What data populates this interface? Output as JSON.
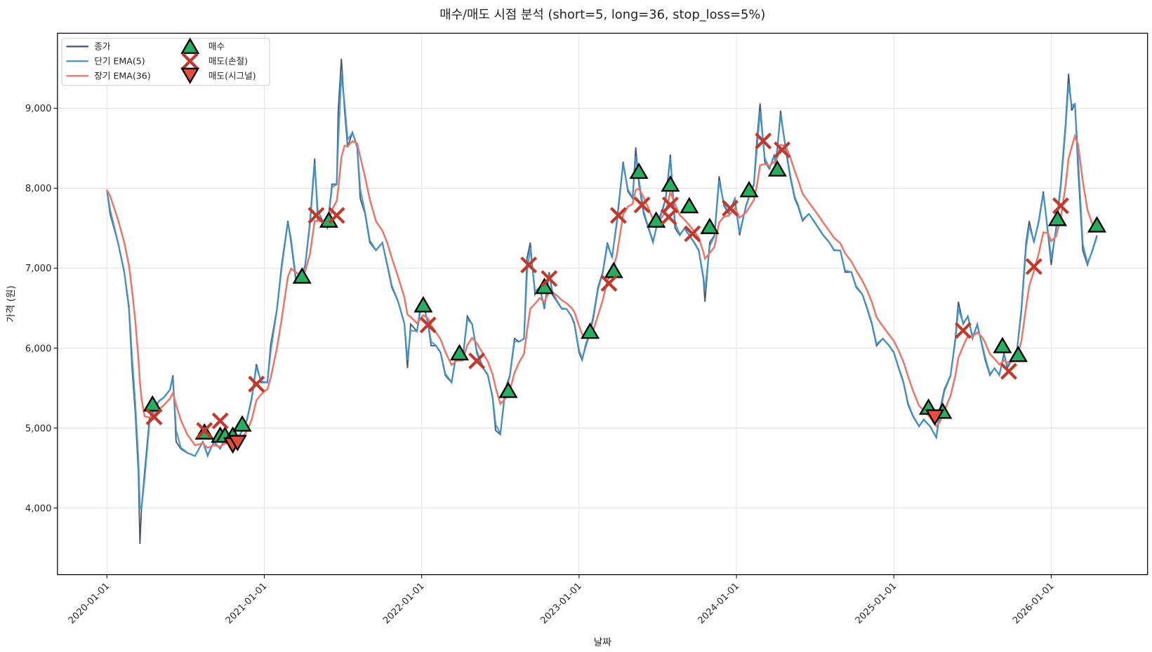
{
  "chart_data": {
    "type": "line",
    "title": "매수/매도 시점 분석 (short=5, long=36, stop_loss=5%)",
    "xlabel": "날짜",
    "ylabel": "가격 (원)",
    "xlim": [
      2019.686,
      2026.612
    ],
    "ylim": [
      3167,
      9938
    ],
    "grid": true,
    "legend_placement": "top-left",
    "x_ticks": [
      {
        "t": 2020,
        "label": "2020-01-01"
      },
      {
        "t": 2021,
        "label": "2021-01-01"
      },
      {
        "t": 2022,
        "label": "2022-01-01"
      },
      {
        "t": 2023,
        "label": "2023-01-01"
      },
      {
        "t": 2024,
        "label": "2024-01-01"
      },
      {
        "t": 2025,
        "label": "2025-01-01"
      },
      {
        "t": 2026,
        "label": "2026-01-01"
      }
    ],
    "y_ticks": [
      {
        "v": 4000,
        "label": "4,000"
      },
      {
        "v": 5000,
        "label": "5,000"
      },
      {
        "v": 6000,
        "label": "6,000"
      },
      {
        "v": 7000,
        "label": "7,000"
      },
      {
        "v": 8000,
        "label": "8,000"
      },
      {
        "v": 9000,
        "label": "9,000"
      }
    ],
    "legend": {
      "close": "종가",
      "short_ema": "단기 EMA(5)",
      "long_ema": "장기 EMA(36)",
      "buy": "매수",
      "sell_stop": "매도(손절)",
      "sell_signal": "매도(시그널)"
    },
    "colors": {
      "close": "#4b5b6d",
      "short_ema": "#3f93d1",
      "long_ema": "#ef7468",
      "buy": "#27ae60",
      "sell_stop": "#c0392b",
      "sell_signal": "#e74c3c"
    },
    "ema_spans": {
      "short": 5,
      "long": 36
    },
    "close_series": [
      [
        2020.0,
        7980
      ],
      [
        2020.02,
        7680
      ],
      [
        2020.07,
        7320
      ],
      [
        2020.11,
        6950
      ],
      [
        2020.14,
        6490
      ],
      [
        2020.16,
        5750
      ],
      [
        2020.18,
        5200
      ],
      [
        2020.2,
        4460
      ],
      [
        2020.21,
        3550
      ],
      [
        2020.22,
        4000
      ],
      [
        2020.24,
        4460
      ],
      [
        2020.27,
        5110
      ],
      [
        2020.29,
        5200
      ],
      [
        2020.33,
        5340
      ],
      [
        2020.36,
        5380
      ],
      [
        2020.4,
        5480
      ],
      [
        2020.42,
        5660
      ],
      [
        2020.44,
        4830
      ],
      [
        2020.47,
        4740
      ],
      [
        2020.51,
        4690
      ],
      [
        2020.56,
        4650
      ],
      [
        2020.61,
        4830
      ],
      [
        2020.64,
        4650
      ],
      [
        2020.68,
        4830
      ],
      [
        2020.72,
        4740
      ],
      [
        2020.75,
        4880
      ],
      [
        2020.78,
        4830
      ],
      [
        2020.82,
        4830
      ],
      [
        2020.86,
        4970
      ],
      [
        2020.89,
        5110
      ],
      [
        2020.92,
        5380
      ],
      [
        2020.95,
        5800
      ],
      [
        2020.98,
        5570
      ],
      [
        2021.02,
        5570
      ],
      [
        2021.04,
        6030
      ],
      [
        2021.08,
        6490
      ],
      [
        2021.11,
        7040
      ],
      [
        2021.15,
        7590
      ],
      [
        2021.17,
        7320
      ],
      [
        2021.2,
        6860
      ],
      [
        2021.23,
        6860
      ],
      [
        2021.26,
        7040
      ],
      [
        2021.29,
        7590
      ],
      [
        2021.32,
        8370
      ],
      [
        2021.34,
        7590
      ],
      [
        2021.37,
        7590
      ],
      [
        2021.4,
        7500
      ],
      [
        2021.43,
        8050
      ],
      [
        2021.46,
        8050
      ],
      [
        2021.47,
        8970
      ],
      [
        2021.49,
        9620
      ],
      [
        2021.51,
        8970
      ],
      [
        2021.53,
        8510
      ],
      [
        2021.56,
        8700
      ],
      [
        2021.59,
        8510
      ],
      [
        2021.61,
        7870
      ],
      [
        2021.64,
        7680
      ],
      [
        2021.67,
        7320
      ],
      [
        2021.71,
        7220
      ],
      [
        2021.75,
        7320
      ],
      [
        2021.78,
        7040
      ],
      [
        2021.81,
        6760
      ],
      [
        2021.85,
        6580
      ],
      [
        2021.89,
        6300
      ],
      [
        2021.91,
        5750
      ],
      [
        2021.93,
        6300
      ],
      [
        2021.97,
        6210
      ],
      [
        2021.99,
        6490
      ],
      [
        2022.01,
        6580
      ],
      [
        2022.04,
        6300
      ],
      [
        2022.06,
        6030
      ],
      [
        2022.09,
        6030
      ],
      [
        2022.12,
        5940
      ],
      [
        2022.15,
        5660
      ],
      [
        2022.19,
        5570
      ],
      [
        2022.22,
        5940
      ],
      [
        2022.26,
        5850
      ],
      [
        2022.29,
        6400
      ],
      [
        2022.32,
        6300
      ],
      [
        2022.35,
        5940
      ],
      [
        2022.39,
        5750
      ],
      [
        2022.42,
        5660
      ],
      [
        2022.45,
        5380
      ],
      [
        2022.47,
        4970
      ],
      [
        2022.5,
        4920
      ],
      [
        2022.53,
        5480
      ],
      [
        2022.56,
        5660
      ],
      [
        2022.59,
        6120
      ],
      [
        2022.62,
        6080
      ],
      [
        2022.65,
        6120
      ],
      [
        2022.67,
        7130
      ],
      [
        2022.69,
        7320
      ],
      [
        2022.72,
        6670
      ],
      [
        2022.75,
        6760
      ],
      [
        2022.78,
        6490
      ],
      [
        2022.81,
        6950
      ],
      [
        2022.83,
        6670
      ],
      [
        2022.86,
        6580
      ],
      [
        2022.89,
        6490
      ],
      [
        2022.92,
        6490
      ],
      [
        2022.95,
        6400
      ],
      [
        2022.97,
        6300
      ],
      [
        2023.0,
        5940
      ],
      [
        2023.02,
        5850
      ],
      [
        2023.04,
        6030
      ],
      [
        2023.07,
        6210
      ],
      [
        2023.09,
        6400
      ],
      [
        2023.12,
        6760
      ],
      [
        2023.15,
        6950
      ],
      [
        2023.18,
        7320
      ],
      [
        2023.21,
        7130
      ],
      [
        2023.24,
        7590
      ],
      [
        2023.28,
        8330
      ],
      [
        2023.31,
        7960
      ],
      [
        2023.34,
        7870
      ],
      [
        2023.36,
        8510
      ],
      [
        2023.38,
        8050
      ],
      [
        2023.41,
        7680
      ],
      [
        2023.44,
        7500
      ],
      [
        2023.47,
        7320
      ],
      [
        2023.5,
        7590
      ],
      [
        2023.52,
        7680
      ],
      [
        2023.55,
        7870
      ],
      [
        2023.58,
        8420
      ],
      [
        2023.61,
        7500
      ],
      [
        2023.64,
        7410
      ],
      [
        2023.67,
        7500
      ],
      [
        2023.7,
        7410
      ],
      [
        2023.73,
        7320
      ],
      [
        2023.76,
        7220
      ],
      [
        2023.79,
        6860
      ],
      [
        2023.8,
        6580
      ],
      [
        2023.83,
        7320
      ],
      [
        2023.86,
        7410
      ],
      [
        2023.89,
        8150
      ],
      [
        2023.92,
        7780
      ],
      [
        2023.95,
        7680
      ],
      [
        2023.99,
        7870
      ],
      [
        2024.02,
        7410
      ],
      [
        2024.06,
        7780
      ],
      [
        2024.09,
        7960
      ],
      [
        2024.11,
        8050
      ],
      [
        2024.13,
        8600
      ],
      [
        2024.15,
        9060
      ],
      [
        2024.18,
        8330
      ],
      [
        2024.21,
        8240
      ],
      [
        2024.24,
        8420
      ],
      [
        2024.25,
        8240
      ],
      [
        2024.28,
        8970
      ],
      [
        2024.31,
        8510
      ],
      [
        2024.34,
        8150
      ],
      [
        2024.37,
        7870
      ],
      [
        2024.39,
        7780
      ],
      [
        2024.42,
        7590
      ],
      [
        2024.46,
        7680
      ],
      [
        2024.49,
        7590
      ],
      [
        2024.52,
        7500
      ],
      [
        2024.55,
        7410
      ],
      [
        2024.59,
        7320
      ],
      [
        2024.62,
        7220
      ],
      [
        2024.66,
        7220
      ],
      [
        2024.69,
        6950
      ],
      [
        2024.73,
        6950
      ],
      [
        2024.76,
        6760
      ],
      [
        2024.8,
        6670
      ],
      [
        2024.83,
        6490
      ],
      [
        2024.86,
        6300
      ],
      [
        2024.89,
        6030
      ],
      [
        2024.93,
        6120
      ],
      [
        2024.97,
        6030
      ],
      [
        2025.0,
        5940
      ],
      [
        2025.03,
        5750
      ],
      [
        2025.06,
        5570
      ],
      [
        2025.09,
        5290
      ],
      [
        2025.12,
        5150
      ],
      [
        2025.16,
        5020
      ],
      [
        2025.19,
        5110
      ],
      [
        2025.23,
        5020
      ],
      [
        2025.27,
        4880
      ],
      [
        2025.29,
        5200
      ],
      [
        2025.32,
        5480
      ],
      [
        2025.36,
        5660
      ],
      [
        2025.39,
        6120
      ],
      [
        2025.41,
        6580
      ],
      [
        2025.44,
        6300
      ],
      [
        2025.47,
        6400
      ],
      [
        2025.5,
        6120
      ],
      [
        2025.53,
        6300
      ],
      [
        2025.56,
        6030
      ],
      [
        2025.58,
        5850
      ],
      [
        2025.61,
        5660
      ],
      [
        2025.64,
        5750
      ],
      [
        2025.67,
        5660
      ],
      [
        2025.7,
        5940
      ],
      [
        2025.72,
        5750
      ],
      [
        2025.75,
        5850
      ],
      [
        2025.78,
        5940
      ],
      [
        2025.81,
        6490
      ],
      [
        2025.84,
        7320
      ],
      [
        2025.86,
        7590
      ],
      [
        2025.89,
        7320
      ],
      [
        2025.92,
        7590
      ],
      [
        2025.95,
        7960
      ],
      [
        2025.98,
        7410
      ],
      [
        2026.0,
        7040
      ],
      [
        2026.03,
        7500
      ],
      [
        2026.06,
        8050
      ],
      [
        2026.09,
        8790
      ],
      [
        2026.11,
        9430
      ],
      [
        2026.13,
        8970
      ],
      [
        2026.15,
        9060
      ],
      [
        2026.17,
        8240
      ],
      [
        2026.2,
        7220
      ],
      [
        2026.23,
        7040
      ],
      [
        2026.26,
        7220
      ],
      [
        2026.29,
        7410
      ]
    ],
    "buy_points": [
      [
        2020.29,
        5290
      ],
      [
        2020.62,
        4940
      ],
      [
        2020.72,
        4900
      ],
      [
        2020.75,
        4900
      ],
      [
        2020.8,
        4900
      ],
      [
        2020.86,
        5040
      ],
      [
        2021.24,
        6890
      ],
      [
        2021.41,
        7590
      ],
      [
        2022.01,
        6530
      ],
      [
        2022.24,
        5930
      ],
      [
        2022.55,
        5460
      ],
      [
        2022.78,
        6760
      ],
      [
        2023.07,
        6200
      ],
      [
        2023.22,
        6960
      ],
      [
        2023.38,
        8200
      ],
      [
        2023.49,
        7590
      ],
      [
        2023.58,
        8040
      ],
      [
        2023.7,
        7770
      ],
      [
        2023.83,
        7510
      ],
      [
        2024.08,
        7970
      ],
      [
        2024.26,
        8230
      ],
      [
        2025.22,
        5250
      ],
      [
        2025.31,
        5200
      ],
      [
        2025.69,
        6020
      ],
      [
        2025.79,
        5910
      ],
      [
        2026.04,
        7610
      ],
      [
        2026.29,
        7530
      ]
    ],
    "sell_stop_points": [
      [
        2020.3,
        5140
      ],
      [
        2020.62,
        4970
      ],
      [
        2020.72,
        5090
      ],
      [
        2020.95,
        5550
      ],
      [
        2021.33,
        7660
      ],
      [
        2021.46,
        7660
      ],
      [
        2022.04,
        6290
      ],
      [
        2022.35,
        5840
      ],
      [
        2022.68,
        7040
      ],
      [
        2022.81,
        6870
      ],
      [
        2023.19,
        6810
      ],
      [
        2023.25,
        7660
      ],
      [
        2023.4,
        7790
      ],
      [
        2023.57,
        7640
      ],
      [
        2023.58,
        7790
      ],
      [
        2023.72,
        7430
      ],
      [
        2023.96,
        7750
      ],
      [
        2024.17,
        8590
      ],
      [
        2024.29,
        8480
      ],
      [
        2025.44,
        6220
      ],
      [
        2025.73,
        5710
      ],
      [
        2025.89,
        7020
      ],
      [
        2026.06,
        7780
      ]
    ],
    "sell_signal_points": [
      [
        2020.8,
        4800
      ],
      [
        2020.83,
        4830
      ],
      [
        2025.26,
        5150
      ]
    ]
  }
}
